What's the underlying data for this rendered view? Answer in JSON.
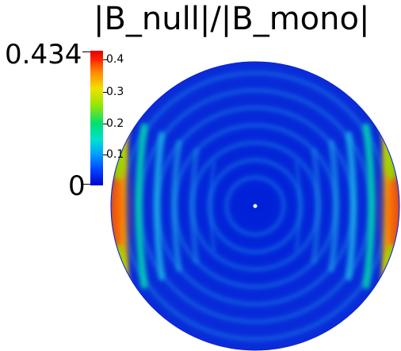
{
  "title": "|B_null|/|B_mono|",
  "colorbar": {
    "max_label": "0.434",
    "min_label": "0",
    "ticks": [
      "0.4",
      "0.3",
      "0.2",
      "0.1"
    ]
  },
  "colors": {
    "background": "#ffffff",
    "disk_base": "#0022d8",
    "center_marker": "#ffffff"
  }
}
